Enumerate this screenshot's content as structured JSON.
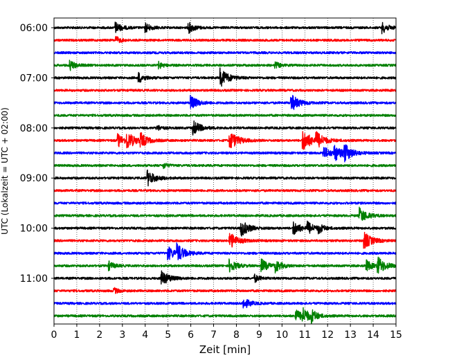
{
  "chart_data": {
    "type": "line",
    "title": "",
    "xlabel": "Zeit  [min]",
    "ylabel": "UTC (Lokalzeit = UTC + 02:00)",
    "xlim": [
      0,
      15
    ],
    "x_ticks": [
      "0",
      "1",
      "2",
      "3",
      "4",
      "5",
      "6",
      "7",
      "8",
      "9",
      "10",
      "11",
      "12",
      "13",
      "14",
      "15"
    ],
    "y_ticks": [
      "06:00",
      "07:00",
      "08:00",
      "09:00",
      "10:00",
      "11:00"
    ],
    "grid_x": true,
    "grid_y": false,
    "trace_interval_minutes": 15,
    "trace_color_cycle": [
      "#000000",
      "#ff0000",
      "#0000ff",
      "#008000"
    ],
    "traces": [
      {
        "start": "06:00",
        "color": "#000000",
        "events": [
          [
            2.7,
            1.0
          ],
          [
            4.0,
            0.9
          ],
          [
            5.9,
            1.0
          ],
          [
            14.4,
            1.0
          ]
        ]
      },
      {
        "start": "06:15",
        "color": "#ff0000",
        "events": [
          [
            2.7,
            0.7
          ]
        ]
      },
      {
        "start": "06:30",
        "color": "#0000ff",
        "events": []
      },
      {
        "start": "06:45",
        "color": "#008000",
        "events": [
          [
            0.7,
            0.9
          ],
          [
            4.6,
            0.6
          ],
          [
            9.7,
            0.6
          ]
        ]
      },
      {
        "start": "07:00",
        "color": "#000000",
        "events": [
          [
            3.7,
            1.0
          ],
          [
            7.3,
            1.7
          ]
        ]
      },
      {
        "start": "07:15",
        "color": "#ff0000",
        "events": []
      },
      {
        "start": "07:30",
        "color": "#0000ff",
        "events": [
          [
            6.0,
            1.3
          ],
          [
            10.4,
            1.6
          ]
        ]
      },
      {
        "start": "07:45",
        "color": "#008000",
        "events": []
      },
      {
        "start": "08:00",
        "color": "#000000",
        "events": [
          [
            6.1,
            1.4
          ],
          [
            4.5,
            0.6
          ]
        ]
      },
      {
        "start": "08:15",
        "color": "#ff0000",
        "events": [
          [
            2.8,
            1.2
          ],
          [
            3.2,
            1.6
          ],
          [
            3.8,
            1.2
          ],
          [
            7.7,
            1.8
          ],
          [
            10.9,
            2.0
          ],
          [
            11.5,
            1.4
          ]
        ]
      },
      {
        "start": "08:30",
        "color": "#0000ff",
        "events": [
          [
            11.8,
            1.3
          ],
          [
            12.3,
            1.4
          ],
          [
            12.7,
            1.6
          ]
        ]
      },
      {
        "start": "08:45",
        "color": "#008000",
        "events": [
          [
            4.8,
            0.5
          ]
        ]
      },
      {
        "start": "09:00",
        "color": "#000000",
        "events": [
          [
            4.1,
            1.5
          ]
        ]
      },
      {
        "start": "09:15",
        "color": "#ff0000",
        "events": []
      },
      {
        "start": "09:30",
        "color": "#0000ff",
        "events": []
      },
      {
        "start": "09:45",
        "color": "#008000",
        "events": [
          [
            13.4,
            1.5
          ]
        ]
      },
      {
        "start": "10:00",
        "color": "#000000",
        "events": [
          [
            8.2,
            1.6
          ],
          [
            10.5,
            1.3
          ],
          [
            11.1,
            1.2
          ],
          [
            11.6,
            0.8
          ]
        ]
      },
      {
        "start": "10:15",
        "color": "#ff0000",
        "events": [
          [
            7.7,
            1.6
          ],
          [
            13.6,
            1.6
          ]
        ]
      },
      {
        "start": "10:30",
        "color": "#0000ff",
        "events": [
          [
            5.0,
            1.3
          ],
          [
            5.4,
            1.5
          ]
        ]
      },
      {
        "start": "10:45",
        "color": "#008000",
        "events": [
          [
            2.4,
            0.8
          ],
          [
            7.7,
            1.2
          ],
          [
            9.1,
            1.2
          ],
          [
            9.7,
            1.1
          ],
          [
            13.7,
            1.0
          ],
          [
            14.2,
            1.6
          ]
        ]
      },
      {
        "start": "11:00",
        "color": "#000000",
        "events": [
          [
            4.7,
            1.5
          ],
          [
            8.8,
            0.7
          ]
        ]
      },
      {
        "start": "11:15",
        "color": "#ff0000",
        "events": [
          [
            2.6,
            0.6
          ]
        ]
      },
      {
        "start": "11:30",
        "color": "#0000ff",
        "events": [
          [
            8.3,
            1.1
          ]
        ]
      },
      {
        "start": "11:45",
        "color": "#008000",
        "events": [
          [
            10.6,
            1.2
          ],
          [
            10.9,
            1.3
          ],
          [
            11.3,
            0.9
          ]
        ]
      }
    ]
  }
}
